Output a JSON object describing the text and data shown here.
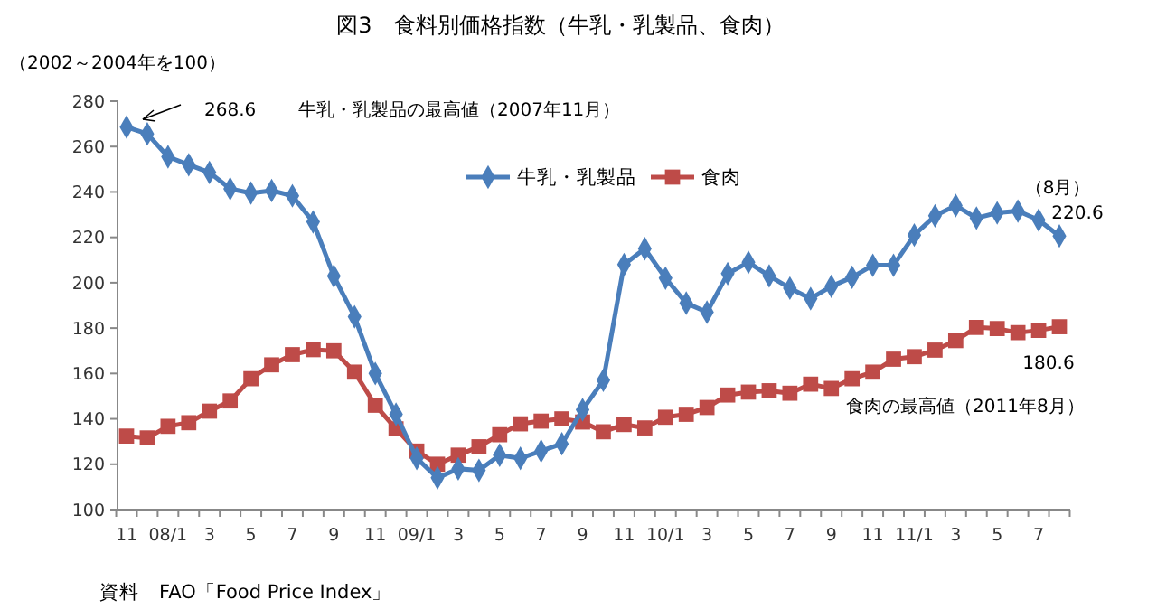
{
  "chart_data": {
    "type": "line",
    "title": "図3　食料別価格指数（牛乳・乳製品、食肉）",
    "ylabel": "（2002～2004年を100）",
    "categories": [
      "11",
      null,
      "08/1",
      null,
      "3",
      null,
      "5",
      null,
      "7",
      null,
      "9",
      null,
      "11",
      null,
      "09/1",
      null,
      "3",
      null,
      "5",
      null,
      "7",
      null,
      "9",
      null,
      "11",
      null,
      "10/1",
      null,
      "3",
      null,
      "5",
      null,
      "7",
      null,
      "9",
      null,
      "11",
      null,
      "11/1",
      null,
      "3",
      null,
      "5",
      null,
      "7",
      null
    ],
    "series": [
      {
        "name": "牛乳・乳製品",
        "color": "#4a7ebb",
        "marker": "diamond",
        "values": [
          268.6,
          265.6,
          255.5,
          252,
          248.6,
          241.4,
          239.5,
          240.6,
          238.3,
          226.8,
          202.9,
          185,
          160,
          142,
          122.6,
          114,
          118,
          117.3,
          124,
          122.6,
          125.8,
          129,
          144,
          157,
          208,
          215,
          202,
          191,
          187,
          204,
          209,
          203,
          197.6,
          193,
          198.4,
          202.4,
          207.7,
          207.7,
          221,
          229.5,
          234,
          228.5,
          230.8,
          231.6,
          227.6,
          220.6
        ]
      },
      {
        "name": "食肉",
        "color": "#be4b48",
        "marker": "square",
        "values": [
          132.4,
          131.6,
          136.7,
          138.3,
          143.4,
          147.9,
          157.7,
          163.8,
          168.3,
          170.5,
          170,
          160.6,
          146,
          135.6,
          125.8,
          120,
          124,
          127.7,
          133,
          137.8,
          139,
          140,
          138.6,
          134.3,
          137.5,
          136,
          140.7,
          142,
          145,
          150.5,
          151.8,
          152.4,
          151.3,
          155.3,
          153.4,
          157.7,
          160.6,
          166.3,
          167.4,
          170.3,
          174.5,
          180.3,
          179.8,
          178,
          179,
          180.6
        ]
      }
    ],
    "ylim": [
      100,
      280
    ],
    "yticks": [
      100,
      120,
      140,
      160,
      180,
      200,
      220,
      240,
      260,
      280
    ],
    "grid": false,
    "legend": "top right",
    "line_style": "solid",
    "annotations": [
      "268.6",
      "牛乳・乳製品の最高値（2007年11月）",
      "（8月）",
      "220.6",
      "180.6",
      "食肉の最高値（2011年8月）",
      "資料　FAO「Food Price Index」"
    ]
  }
}
